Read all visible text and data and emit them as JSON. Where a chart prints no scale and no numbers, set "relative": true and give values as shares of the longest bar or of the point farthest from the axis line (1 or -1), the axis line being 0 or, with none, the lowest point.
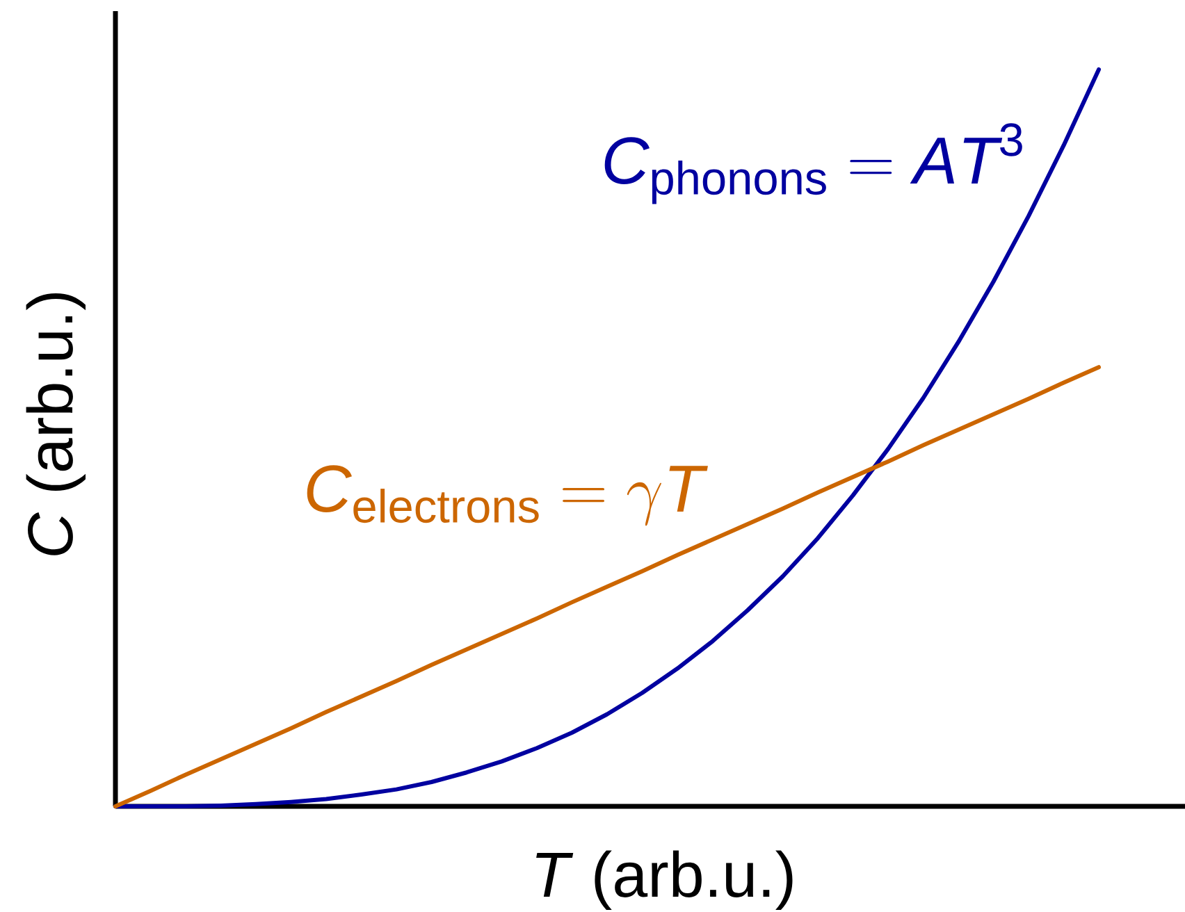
{
  "chart_data": {
    "type": "line",
    "xlabel": "*T* (arb.u.)",
    "ylabel": "*C* (arb.u.)",
    "relative": true,
    "marker": "none",
    "line_style": "solid",
    "categories": [
      null,
      null,
      null,
      null,
      null,
      null,
      null,
      null,
      null,
      null,
      null,
      null,
      null,
      null,
      null,
      null,
      null,
      null,
      null,
      null,
      null,
      null,
      null,
      null,
      null,
      null,
      null,
      null,
      null
    ],
    "series": [
      {
        "name": "\\mathit{C}_{\\mathrm{phonons}} \\mathrel{\\mathrm{=}} \\mathit{AT}^{\\mathrm{3}}",
        "color": "#0000a0",
        "values": [
          0,
          0,
          0,
          0.001,
          0.003,
          0.006,
          0.01,
          0.016,
          0.023,
          0.033,
          0.046,
          0.061,
          0.079,
          0.1,
          0.125,
          0.154,
          0.187,
          0.224,
          0.266,
          0.312,
          0.364,
          0.422,
          0.485,
          0.554,
          0.63,
          0.712,
          0.801,
          0.897,
          1
        ]
      },
      {
        "name": "\\mathit{C}_{\\mathrm{electrons}} \\mathrel{\\mathrm{=}} \\gamma\\mathit{T}",
        "color": "#cc6600",
        "values": [
          0,
          0.021,
          0.043,
          0.064,
          0.085,
          0.106,
          0.128,
          0.149,
          0.17,
          0.192,
          0.213,
          0.234,
          0.255,
          0.277,
          0.298,
          0.319,
          0.341,
          0.362,
          0.383,
          0.404,
          0.426,
          0.447,
          0.468,
          0.49,
          0.511,
          0.532,
          0.553,
          0.575,
          0.596
        ]
      }
    ]
  }
}
